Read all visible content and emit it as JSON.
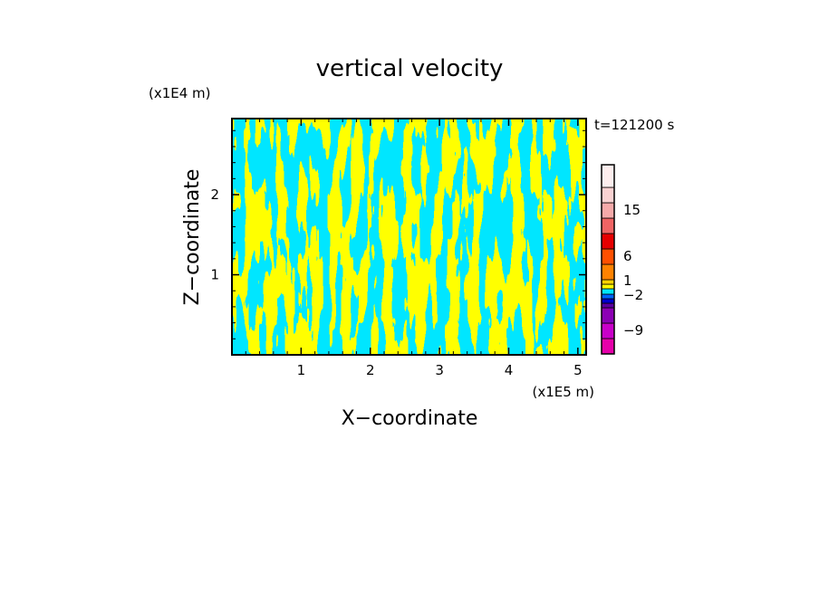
{
  "chart_data": {
    "type": "heatmap",
    "title": "vertical velocity",
    "xlabel": "X−coordinate",
    "ylabel": "Z−coordinate",
    "x_scale_label": "(x1E5 m)",
    "y_scale_label": "(x1E4 m)",
    "time_label": "t=121200 s",
    "xlim": [
      0,
      5.12
    ],
    "ylim": [
      0,
      2.95
    ],
    "x_ticks": [
      1,
      2,
      3,
      4,
      5
    ],
    "y_ticks": [
      1,
      2
    ],
    "x_tick_labels": [
      "1",
      "2",
      "3",
      "4",
      "5"
    ],
    "y_tick_labels": [
      "1",
      "2"
    ],
    "field_colors": {
      "positive": "#ffff00",
      "negative": "#00e6ff"
    },
    "colorbar": {
      "levels": [
        -12,
        -9,
        -6,
        -4,
        -2,
        -1,
        0,
        1,
        2,
        4,
        6,
        9,
        12,
        15,
        18,
        22
      ],
      "colors": [
        "#e600aa",
        "#c800c8",
        "#8c00b4",
        "#5a00a0",
        "#0000cc",
        "#0064ff",
        "#00e6ff",
        "#ffff00",
        "#ffd200",
        "#ff8200",
        "#ff5000",
        "#e60000",
        "#f06464",
        "#f5aaaa",
        "#fad2d2",
        "#fdeeee"
      ],
      "tick_values": [
        -9,
        -2,
        1,
        6,
        15
      ],
      "tick_labels": [
        "−9",
        "−2",
        "1",
        "6",
        "15"
      ]
    }
  }
}
